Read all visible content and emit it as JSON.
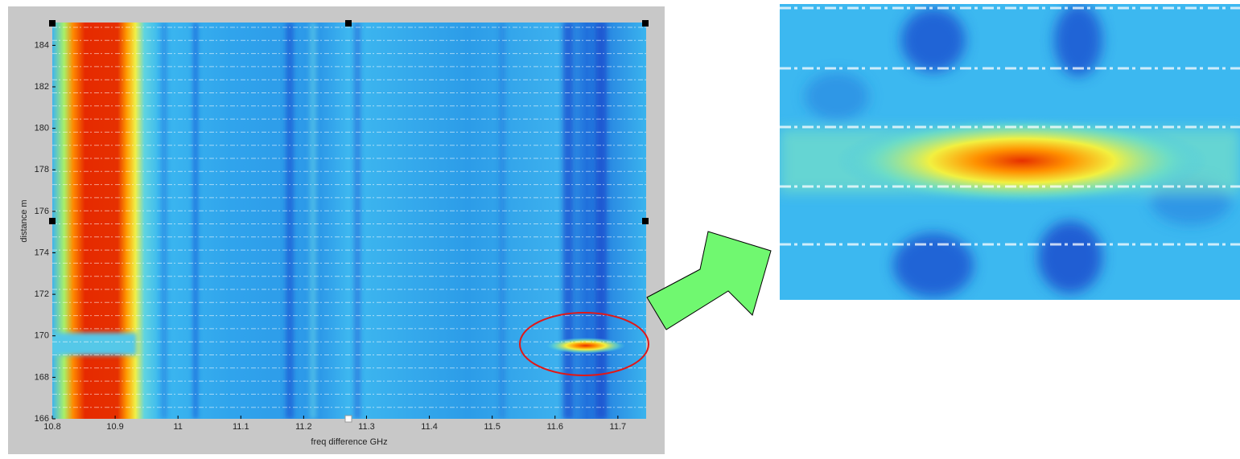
{
  "chart_data": {
    "type": "heatmap",
    "x_label": "freq difference GHz",
    "y_label": "distance m",
    "xlim": [
      10.8,
      11.745
    ],
    "ylim": [
      166,
      185.1
    ],
    "xticks": [
      10.8,
      10.9,
      11,
      11.1,
      11.2,
      11.3,
      11.4,
      11.5,
      11.6,
      11.7
    ],
    "yticks": [
      166,
      168,
      170,
      172,
      174,
      176,
      178,
      180,
      182,
      184
    ]
  }
}
